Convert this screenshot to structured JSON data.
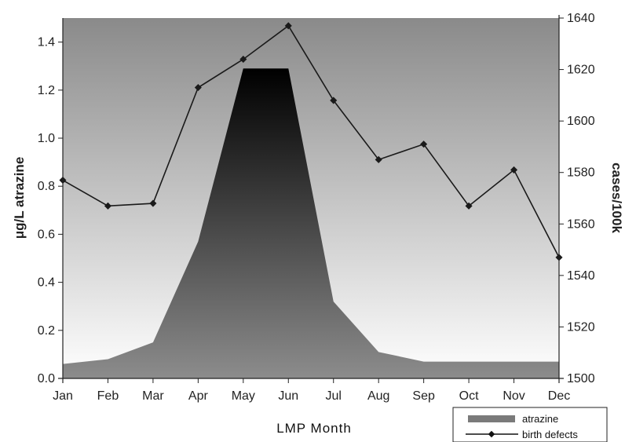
{
  "chart_data": {
    "type": "area+line",
    "categories": [
      "Jan",
      "Feb",
      "Mar",
      "Apr",
      "May",
      "Jun",
      "Jul",
      "Aug",
      "Sep",
      "Oct",
      "Nov",
      "Dec"
    ],
    "series": [
      {
        "name": "atrazine",
        "type": "area",
        "axis": "left",
        "values": [
          0.06,
          0.08,
          0.15,
          0.57,
          1.29,
          1.29,
          0.32,
          0.11,
          0.07,
          0.07,
          0.07,
          0.07
        ]
      },
      {
        "name": "birth defects",
        "type": "line",
        "axis": "right",
        "values": [
          1577,
          1567,
          1568,
          1613,
          1624,
          1637,
          1608,
          1585,
          1591,
          1567,
          1581,
          1547
        ]
      }
    ],
    "xlabel": "LMP Month",
    "ylabel_left": "μg/L atrazine",
    "ylabel_right": "cases/100k",
    "ylim_left": [
      0,
      1.5
    ],
    "ylim_right": [
      1500,
      1640
    ],
    "yticks_left": [
      "0.0",
      "0.2",
      "0.4",
      "0.6",
      "0.8",
      "1.0",
      "1.2",
      "1.4"
    ],
    "yticks_right": [
      "1500",
      "1520",
      "1540",
      "1560",
      "1580",
      "1600",
      "1620",
      "1640"
    ],
    "legend": [
      "atrazine",
      "birth defects"
    ],
    "legend_position": "bottom-right",
    "grid": false,
    "colors": {
      "area_top": "#000000",
      "area_bottom": "#8c8c8c",
      "background_top": "#8a8a8a",
      "background_bottom": "#ffffff",
      "line": "#1a1a1a"
    }
  }
}
